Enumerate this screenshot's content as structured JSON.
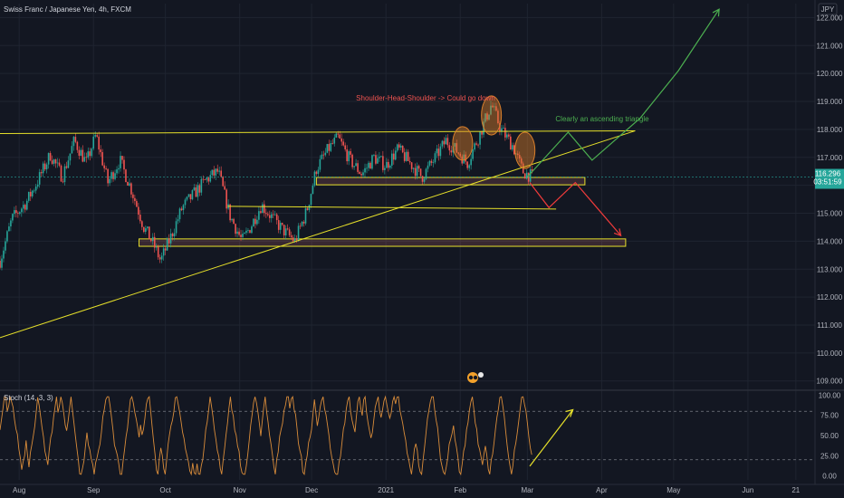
{
  "header": {
    "title": "Swiss Franc / Japanese Yen, 4h, FXCM",
    "currency": "JPY"
  },
  "stoch_header": {
    "title": "Stoch (14, 3, 3)"
  },
  "colors": {
    "background": "#131722",
    "grid": "#1f2430",
    "up": "#26a69a",
    "down": "#ef5350",
    "yellow": "#e6e02a",
    "green": "#4caf50",
    "red": "#ef3b3b",
    "orange": "#d97f2b",
    "price_tag": "#26a69a",
    "stoch_line": "#d98c3a"
  },
  "chart_data": [
    {
      "type": "candlestick",
      "title": "Swiss Franc / Japanese Yen, 4h, FXCM",
      "x_ticks": [
        "Aug",
        "Sep",
        "Oct",
        "Nov",
        "Dec",
        "2021",
        "Feb",
        "Mar",
        "Apr",
        "May",
        "Jun",
        "21"
      ],
      "y_ticks": [
        "122.000",
        "121.000",
        "120.000",
        "119.000",
        "118.000",
        "117.000",
        "116.000",
        "115.000",
        "114.000",
        "113.000",
        "112.000",
        "111.000",
        "110.000",
        "109.000"
      ],
      "ylim": [
        108.7,
        122.5
      ],
      "last_price": "116.296",
      "countdown": "03:51:59",
      "series_path": [
        [
          "2020-07-24",
          113.3
        ],
        [
          "2020-07-29",
          114.8
        ],
        [
          "2020-08-04",
          115.4
        ],
        [
          "2020-08-09",
          116.2
        ],
        [
          "2020-08-14",
          117.1
        ],
        [
          "2020-08-19",
          116.3
        ],
        [
          "2020-08-24",
          117.6
        ],
        [
          "2020-08-29",
          116.8
        ],
        [
          "2020-09-02",
          117.8
        ],
        [
          "2020-09-07",
          116.1
        ],
        [
          "2020-09-12",
          116.9
        ],
        [
          "2020-09-17",
          115.8
        ],
        [
          "2020-09-22",
          114.5
        ],
        [
          "2020-09-26",
          113.9
        ],
        [
          "2020-09-29",
          113.3
        ],
        [
          "2020-10-03",
          114.1
        ],
        [
          "2020-10-08",
          115.2
        ],
        [
          "2020-10-13",
          115.7
        ],
        [
          "2020-10-18",
          116.2
        ],
        [
          "2020-10-23",
          116.5
        ],
        [
          "2020-10-28",
          114.9
        ],
        [
          "2020-11-02",
          114.0
        ],
        [
          "2020-11-06",
          114.6
        ],
        [
          "2020-11-10",
          115.3
        ],
        [
          "2020-11-15",
          114.8
        ],
        [
          "2020-11-19",
          114.4
        ],
        [
          "2020-11-24",
          114.0
        ],
        [
          "2020-11-29",
          115.1
        ],
        [
          "2020-12-03",
          116.6
        ],
        [
          "2020-12-08",
          117.3
        ],
        [
          "2020-12-12",
          117.7
        ],
        [
          "2020-12-17",
          116.9
        ],
        [
          "2020-12-22",
          116.4
        ],
        [
          "2020-12-27",
          117.0
        ],
        [
          "2021-01-01",
          116.7
        ],
        [
          "2021-01-06",
          117.3
        ],
        [
          "2021-01-11",
          116.8
        ],
        [
          "2021-01-16",
          116.3
        ],
        [
          "2021-01-21",
          116.9
        ],
        [
          "2021-01-26",
          117.6
        ],
        [
          "2021-01-31",
          117.2
        ],
        [
          "2021-02-04",
          116.8
        ],
        [
          "2021-02-09",
          117.8
        ],
        [
          "2021-02-14",
          118.9
        ],
        [
          "2021-02-18",
          118.0
        ],
        [
          "2021-02-23",
          117.4
        ],
        [
          "2021-02-27",
          116.5
        ],
        [
          "2021-03-03",
          116.3
        ]
      ]
    },
    {
      "type": "line",
      "title": "Stoch (14, 3, 3)",
      "y_ticks": [
        "100.00",
        "75.00",
        "50.00",
        "25.00",
        "0.00"
      ],
      "ylim": [
        -5,
        105
      ],
      "bands": [
        80,
        20
      ]
    }
  ],
  "annotations": {
    "hs_label": "Shoulder-Head-Shoulder -> Could go down",
    "triangle_label": "Clearly an ascending triangle",
    "zones": [
      {
        "name": "neckline-zone",
        "date_from": "2020-12-03",
        "date_to": "2021-03-25",
        "low": 116.05,
        "high": 116.25
      },
      {
        "name": "support-zone",
        "date_from": "2020-09-20",
        "date_to": "2021-04-11",
        "low": 113.85,
        "high": 114.05
      }
    ],
    "lines": [
      {
        "name": "resistance-line",
        "from": [
          "2020-07-24",
          117.85
        ],
        "to": [
          "2021-04-15",
          117.95
        ]
      },
      {
        "name": "ascending-trendline",
        "from": [
          "2020-07-24",
          110.55
        ],
        "to": [
          "2021-04-15",
          117.95
        ]
      },
      {
        "name": "mid-level-line",
        "from": [
          "2020-10-27",
          115.25
        ],
        "to": [
          "2021-03-13",
          115.15
        ]
      }
    ],
    "ellipses": [
      {
        "name": "left-shoulder",
        "date": "2021-02-02",
        "low": 116.9,
        "high": 118.1
      },
      {
        "name": "head",
        "date": "2021-02-14",
        "low": 117.8,
        "high": 119.2
      },
      {
        "name": "right-shoulder",
        "date": "2021-02-28",
        "low": 116.6,
        "high": 117.9
      }
    ],
    "green_path": [
      [
        "2021-03-01",
        116.3
      ],
      [
        "2021-03-18",
        117.9
      ],
      [
        "2021-03-28",
        116.9
      ],
      [
        "2021-04-17",
        118.4
      ],
      [
        "2021-05-03",
        120.1
      ],
      [
        "2021-05-20",
        122.3
      ]
    ],
    "red_path": [
      [
        "2021-03-02",
        116.1
      ],
      [
        "2021-03-10",
        115.2
      ],
      [
        "2021-03-21",
        116.1
      ],
      [
        "2021-03-30",
        115.2
      ],
      [
        "2021-04-09",
        114.2
      ]
    ]
  }
}
